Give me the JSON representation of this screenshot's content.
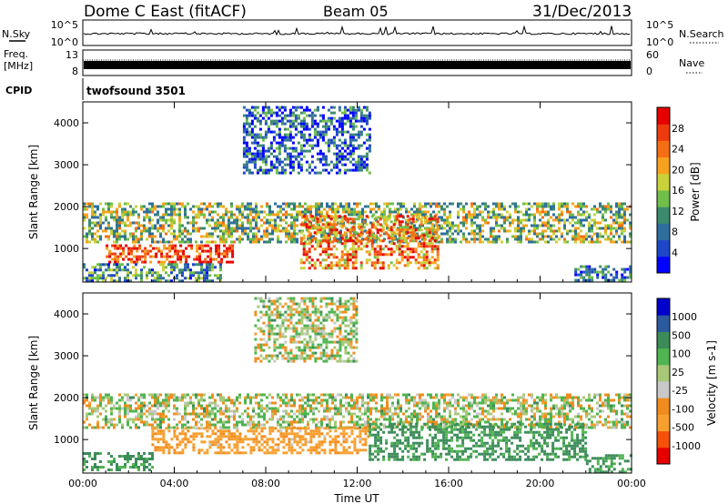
{
  "header": {
    "station": "Dome C East (fitACF)",
    "beam": "Beam 05",
    "date": "31/Dec/2013"
  },
  "small_panels": {
    "nsky_label": "N.Sky",
    "nsky_ticks": [
      "10^5",
      "10^0"
    ],
    "nsearch_label": "N.Search",
    "nsearch_ticks": [
      "10^5",
      "10^0"
    ],
    "freq_label": "Freq.",
    "freq_unit": "[MHz]",
    "freq_ticks": [
      "13",
      "8"
    ],
    "nave_label": "Nave",
    "nave_ticks": [
      "60",
      "0"
    ],
    "cpid_label": "CPID",
    "cpid_value": "twofsound 3501"
  },
  "colors": {
    "power_scale": [
      "#0000ff",
      "#1e46c8",
      "#2e6e9e",
      "#3d8a6e",
      "#6fbf4a",
      "#c9d23a",
      "#f7a21e",
      "#f56e14",
      "#ef3a10",
      "#e60000"
    ],
    "velocity_scale": [
      "#e60000",
      "#f5500a",
      "#f7a030",
      "#f08c1e",
      "#c8c8c8",
      "#a8c878",
      "#50b450",
      "#3c8c5a",
      "#2d5a9e",
      "#0000cd"
    ]
  },
  "chart_data": [
    {
      "type": "heatmap",
      "name": "power",
      "ylabel": "Slant Range [km]",
      "yticks": [
        "1000",
        "2000",
        "3000",
        "4000"
      ],
      "ylim": [
        200,
        4500
      ],
      "xlim_hours": [
        0,
        24
      ],
      "xticks": [
        "00:00",
        "04:00",
        "08:00",
        "12:00",
        "16:00",
        "20:00",
        "00:00"
      ],
      "colorbar_label": "Power [dB]",
      "colorbar_ticks": [
        "4",
        "8",
        "12",
        "16",
        "20",
        "24",
        "28"
      ],
      "colorbar_range": [
        0,
        30
      ],
      "bands": [
        {
          "h0": 0.0,
          "h1": 24.0,
          "r0": 1150,
          "r1": 2100,
          "v": 14
        },
        {
          "h0": 1.0,
          "h1": 6.5,
          "r0": 700,
          "r1": 1100,
          "v": 26
        },
        {
          "h0": 9.5,
          "h1": 15.5,
          "r0": 500,
          "r1": 1800,
          "v": 22
        },
        {
          "h0": 7.0,
          "h1": 12.5,
          "r0": 2800,
          "r1": 4400,
          "v": 6
        },
        {
          "h0": 0.0,
          "h1": 6.0,
          "r0": 250,
          "r1": 650,
          "v": 10
        },
        {
          "h0": 21.5,
          "h1": 24.0,
          "r0": 250,
          "r1": 600,
          "v": 8
        }
      ]
    },
    {
      "type": "heatmap",
      "name": "velocity",
      "ylabel": "Slant Range [km]",
      "yticks": [
        "1000",
        "2000",
        "3000",
        "4000"
      ],
      "ylim": [
        200,
        4500
      ],
      "xlim_hours": [
        0,
        24
      ],
      "xticks": [
        "00:00",
        "04:00",
        "08:00",
        "12:00",
        "16:00",
        "20:00",
        "00:00"
      ],
      "xlabel": "Time UT",
      "colorbar_label": "Velocity [m s-1]",
      "colorbar_ticks": [
        "1000",
        "500",
        "100",
        "25",
        "-25",
        "-100",
        "-500",
        "-1000"
      ],
      "bands": [
        {
          "h0": 0.0,
          "h1": 24.0,
          "r0": 1300,
          "r1": 2100,
          "v": 0
        },
        {
          "h0": 3.0,
          "h1": 12.5,
          "r0": 700,
          "r1": 1300,
          "v": -150
        },
        {
          "h0": 12.5,
          "h1": 22.0,
          "r0": 500,
          "r1": 1400,
          "v": 150
        },
        {
          "h0": 0.0,
          "h1": 3.0,
          "r0": 250,
          "r1": 700,
          "v": 150
        },
        {
          "h0": 7.5,
          "h1": 12.0,
          "r0": 2900,
          "r1": 4400,
          "v": 0
        },
        {
          "h0": 22.0,
          "h1": 24.0,
          "r0": 250,
          "r1": 650,
          "v": 150
        }
      ]
    }
  ]
}
